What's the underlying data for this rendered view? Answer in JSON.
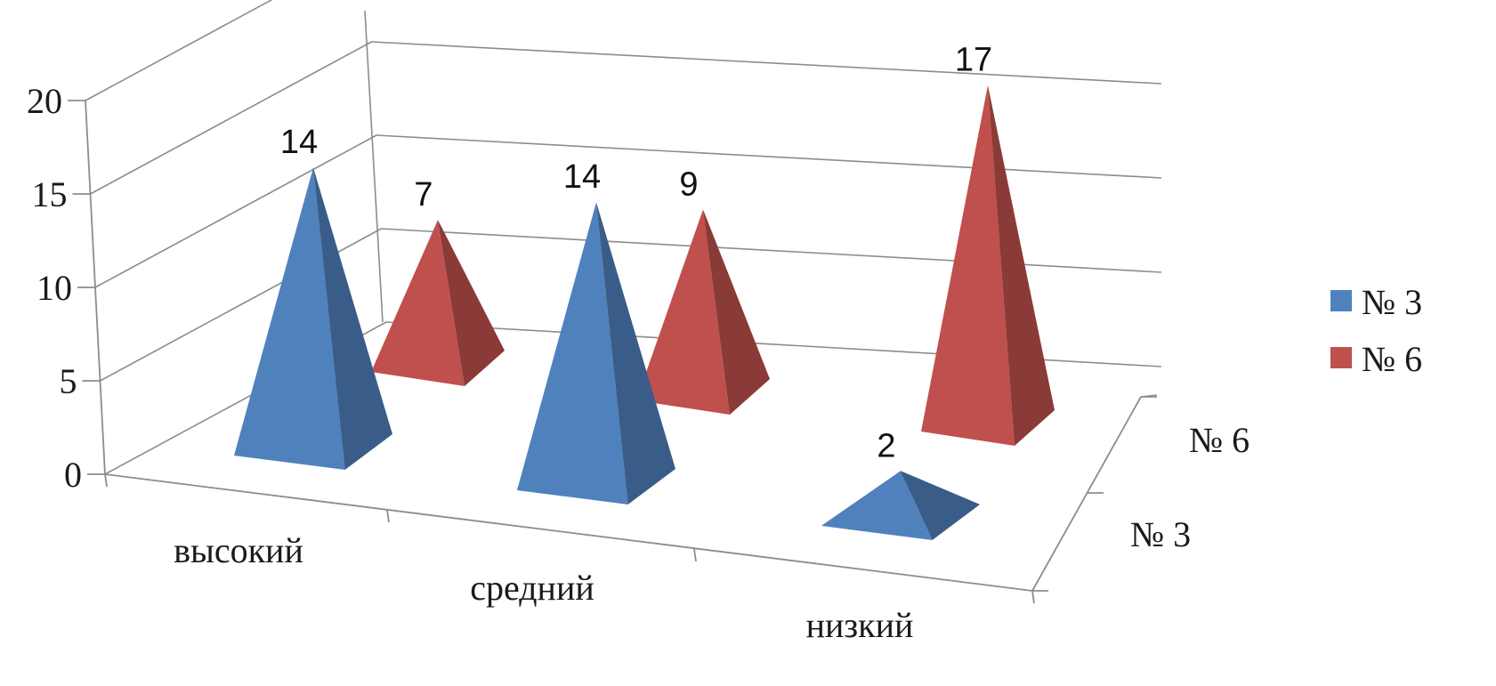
{
  "chart_data": {
    "type": "bar",
    "style": "3d-pyramid",
    "categories": [
      "высокий",
      "средний",
      "низкий"
    ],
    "series": [
      {
        "name": "№ 3",
        "values": [
          14,
          14,
          2
        ],
        "color": "#4f81bd"
      },
      {
        "name": "№ 6",
        "values": [
          7,
          9,
          17
        ],
        "color": "#c0504d"
      }
    ],
    "depth_labels": [
      "№ 6",
      "№ 3"
    ],
    "yticks": [
      "0",
      "5",
      "10",
      "15",
      "20"
    ],
    "ylim": [
      0,
      20
    ],
    "grid": true,
    "legend": "right"
  }
}
